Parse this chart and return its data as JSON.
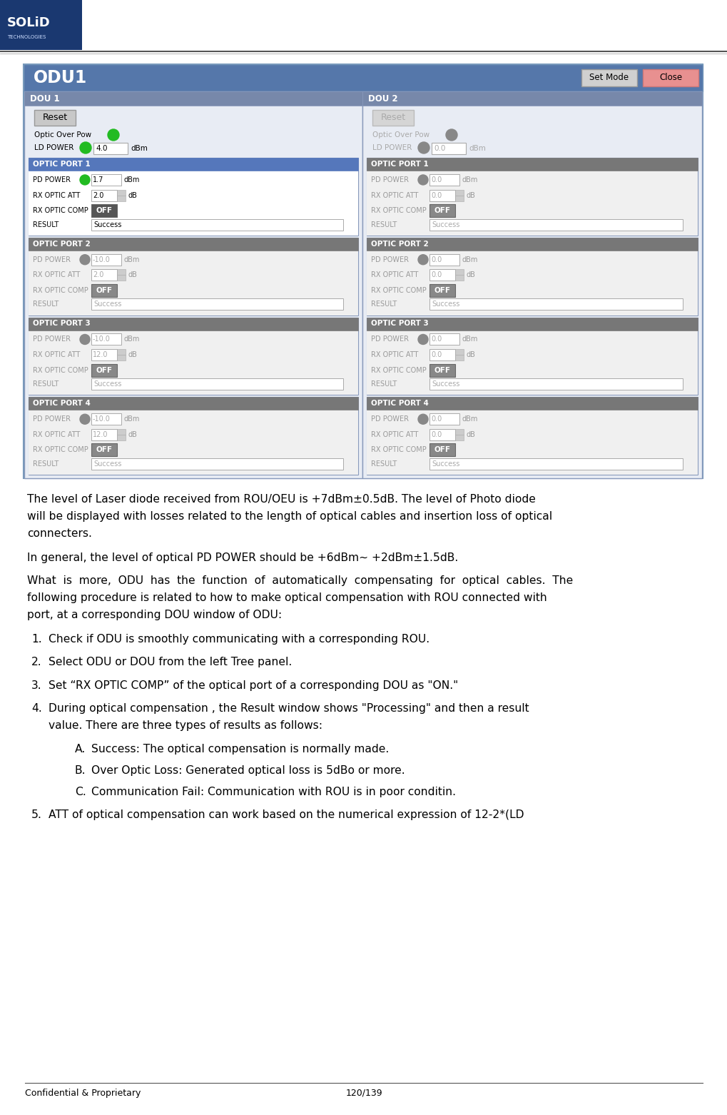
{
  "page_width": 10.2,
  "page_height": 15.62,
  "dpi": 100,
  "odu_title": "ODU1",
  "btn_set_mode": "Set Mode",
  "btn_close": "Close",
  "dou1_title": "DOU 1",
  "dou2_title": "DOU 2",
  "footer_left": "Confidential & Proprietary",
  "footer_right": "120/139",
  "para1": "The level of Laser diode received from ROU/OEU is +7dBm±0.5dB. The level of Photo diode\nwill be displayed with losses related to the length of optical cables and insertion loss of optical\nconnecters.",
  "para2": "In general, the level of optical PD POWER should be +6dBm~ +2dBm±1.5dB.",
  "para3": "What  is  more,  ODU  has  the  function  of  automatically  compensating  for  optical  cables.  The\nfollowing procedure is related to how to make optical compensation with ROU connected with\nport, at a corresponding DOU window of ODU:",
  "numbered_items": [
    "Check if ODU is smoothly communicating with a corresponding ROU.",
    "Select ODU or DOU from the left Tree panel.",
    "Set “RX OPTIC COMP” of the optical port of a corresponding DOU as \"ON.\"",
    "During optical compensation , the Result window shows \"Processing\" and then a result\nvalue. There are three types of results as follows:",
    "ATT of optical compensation can work based on the numerical expression of 12-2*(LD"
  ],
  "sub_items": [
    [
      "A.",
      "Success: The optical compensation is normally made."
    ],
    [
      "B.",
      "Over Optic Loss: Generated optical loss is 5dBo or more."
    ],
    [
      "C.",
      "Communication Fail: Communication with ROU is in poor conditin."
    ]
  ],
  "dou1_reset_active": true,
  "dou2_reset_active": false,
  "dou1_optic_color": "#22bb22",
  "dou2_optic_color": "#888888",
  "dou1_ld_power": "4.0",
  "dou2_ld_power": "0.0",
  "dou1_ld_color": "#22bb22",
  "dou2_ld_color": "#888888",
  "ports_dou1": [
    {
      "name": "OPTIC PORT 1",
      "pd_power": "1.7",
      "pd_color": "#22bb22",
      "rx_att": "2.0",
      "rx_comp": "OFF",
      "result": "Success",
      "active": true
    },
    {
      "name": "OPTIC PORT 2",
      "pd_power": "-10.0",
      "pd_color": "#888888",
      "rx_att": "2.0",
      "rx_comp": "OFF",
      "result": "Success",
      "active": false
    },
    {
      "name": "OPTIC PORT 3",
      "pd_power": "-10.0",
      "pd_color": "#888888",
      "rx_att": "12.0",
      "rx_comp": "OFF",
      "result": "Success",
      "active": false
    },
    {
      "name": "OPTIC PORT 4",
      "pd_power": "-10.0",
      "pd_color": "#888888",
      "rx_att": "12.0",
      "rx_comp": "OFF",
      "result": "Success",
      "active": false
    }
  ],
  "ports_dou2": [
    {
      "name": "OPTIC PORT 1",
      "pd_power": "0.0",
      "pd_color": "#888888",
      "rx_att": "0.0",
      "rx_comp": "OFF",
      "result": "Success",
      "active": false
    },
    {
      "name": "OPTIC PORT 2",
      "pd_power": "0.0",
      "pd_color": "#888888",
      "rx_att": "0.0",
      "rx_comp": "OFF",
      "result": "Success",
      "active": false
    },
    {
      "name": "OPTIC PORT 3",
      "pd_power": "0.0",
      "pd_color": "#888888",
      "rx_att": "0.0",
      "rx_comp": "OFF",
      "result": "Success",
      "active": false
    },
    {
      "name": "OPTIC PORT 4",
      "pd_power": "0.0",
      "pd_color": "#888888",
      "rx_att": "0.0",
      "rx_comp": "OFF",
      "result": "Success",
      "active": false
    }
  ],
  "bg_color": "#ffffff",
  "odu_header_bg": "#5577aa",
  "dou_title_bg": "#7788aa",
  "port_hdr_active": "#5577bb",
  "port_hdr_inactive": "#777777",
  "port_body_active": "#ffffff",
  "port_body_inactive": "#f0f0f0",
  "panel_outer_bg": "#dde4f0",
  "panel_border": "#7799bb"
}
